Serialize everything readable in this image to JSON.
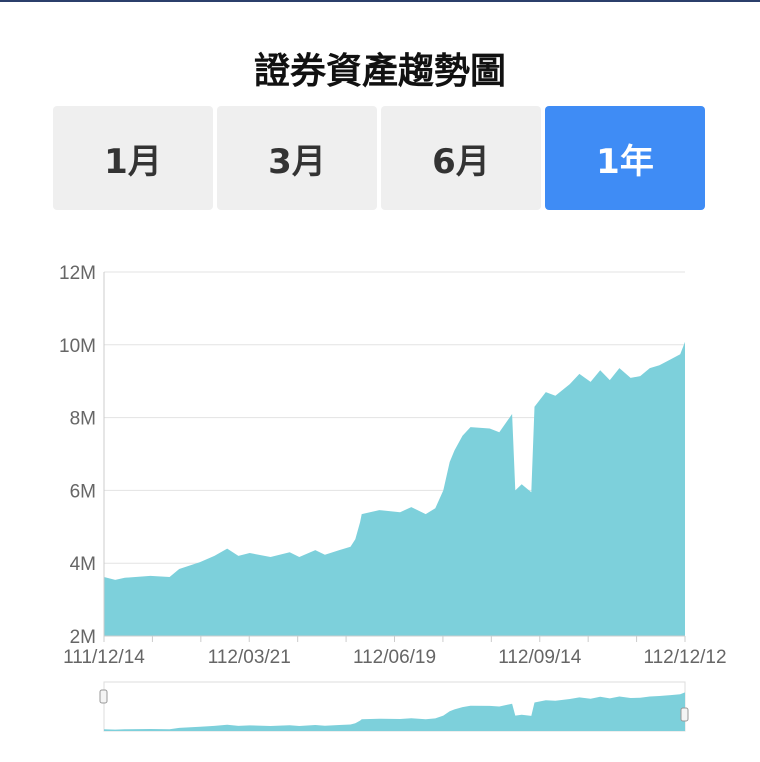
{
  "title": "證券資產趨勢圖",
  "tabs": [
    {
      "label": "1月",
      "active": false
    },
    {
      "label": "3月",
      "active": false
    },
    {
      "label": "6月",
      "active": false
    },
    {
      "label": "1年",
      "active": true
    }
  ],
  "colors": {
    "area": "#7dd0db",
    "active_tab": "#3f8cf5",
    "tab": "#efefef"
  },
  "chart_data": {
    "type": "area",
    "title": "",
    "xlabel": "",
    "ylabel": "",
    "ylim": [
      2,
      12
    ],
    "y_unit": "M",
    "y_ticks": [
      "2M",
      "4M",
      "6M",
      "8M",
      "10M",
      "12M"
    ],
    "x_ticks": [
      "111/12/14",
      "112/03/21",
      "112/06/19",
      "112/09/14",
      "112/12/12"
    ],
    "xlim": [
      "111/12/14",
      "112/12/12"
    ],
    "grid": true,
    "legend": "none",
    "data_zoom": {
      "start_percent": 0,
      "end_percent": 100
    },
    "points": [
      [
        "111/12/14",
        3.62
      ],
      [
        "111/12/21",
        3.54
      ],
      [
        "111/12/27",
        3.6
      ],
      [
        "112/01/12",
        3.65
      ],
      [
        "112/01/24",
        3.62
      ],
      [
        "112/01/30",
        3.84
      ],
      [
        "112/02/12",
        4.03
      ],
      [
        "112/02/21",
        4.2
      ],
      [
        "112/03/01",
        4.4
      ],
      [
        "112/03/08",
        4.2
      ],
      [
        "112/03/15",
        4.28
      ],
      [
        "112/03/28",
        4.17
      ],
      [
        "112/04/09",
        4.3
      ],
      [
        "112/04/15",
        4.17
      ],
      [
        "112/04/25",
        4.36
      ],
      [
        "112/05/01",
        4.23
      ],
      [
        "112/05/10",
        4.36
      ],
      [
        "112/05/17",
        4.45
      ],
      [
        "112/05/20",
        4.66
      ],
      [
        "112/05/23",
        5.13
      ],
      [
        "112/05/24",
        5.35
      ],
      [
        "112/06/04",
        5.46
      ],
      [
        "112/06/17",
        5.4
      ],
      [
        "112/06/24",
        5.54
      ],
      [
        "112/07/03",
        5.35
      ],
      [
        "112/07/09",
        5.51
      ],
      [
        "112/07/14",
        6.0
      ],
      [
        "112/07/18",
        6.78
      ],
      [
        "112/07/21",
        7.1
      ],
      [
        "112/07/26",
        7.5
      ],
      [
        "112/07/31",
        7.74
      ],
      [
        "112/08/12",
        7.7
      ],
      [
        "112/08/18",
        7.6
      ],
      [
        "112/08/26",
        8.1
      ],
      [
        "112/08/28",
        6.0
      ],
      [
        "112/09/01",
        6.17
      ],
      [
        "112/09/07",
        5.95
      ],
      [
        "112/09/09",
        8.3
      ],
      [
        "112/09/16",
        8.7
      ],
      [
        "112/09/22",
        8.6
      ],
      [
        "112/10/01",
        8.92
      ],
      [
        "112/10/07",
        9.2
      ],
      [
        "112/10/14",
        8.98
      ],
      [
        "112/10/20",
        9.3
      ],
      [
        "112/10/26",
        9.03
      ],
      [
        "112/11/01",
        9.36
      ],
      [
        "112/11/08",
        9.09
      ],
      [
        "112/11/14",
        9.14
      ],
      [
        "112/11/20",
        9.36
      ],
      [
        "112/11/26",
        9.44
      ],
      [
        "112/12/03",
        9.6
      ],
      [
        "112/12/09",
        9.74
      ],
      [
        "112/12/12",
        10.08
      ]
    ]
  }
}
